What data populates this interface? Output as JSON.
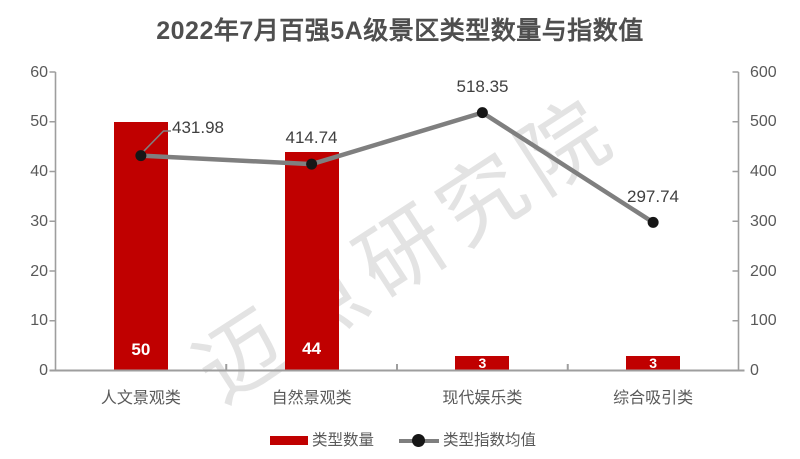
{
  "title": "2022年7月百强5A级景区类型数量与指数值",
  "watermark": "迈点研究院",
  "colors": {
    "bar": "#c00000",
    "line": "#7f7f7f",
    "marker": "#161616",
    "axis": "#9e9e9e",
    "title_text": "#4f4f4f",
    "tick_text": "#595959",
    "data_label_text": "#3f3f3f",
    "bar_label_text": "#ffffff",
    "watermark_text": "#e3e3e3",
    "background": "#ffffff"
  },
  "chart_data": {
    "type": "bar",
    "combo": "bar + line, dual axis",
    "title": "2022年7月百强5A级景区类型数量与指数值",
    "categories": [
      "人文景观类",
      "自然景观类",
      "现代娱乐类",
      "综合吸引类"
    ],
    "series": [
      {
        "name": "类型数量",
        "type": "bar",
        "axis": "left",
        "values": [
          50,
          44,
          3,
          3
        ]
      },
      {
        "name": "类型指数均值",
        "type": "line",
        "axis": "right",
        "values": [
          431.98,
          414.74,
          518.35,
          297.74
        ]
      }
    ],
    "left_axis": {
      "min": 0,
      "max": 60,
      "ticks": [
        0,
        10,
        20,
        30,
        40,
        50,
        60
      ]
    },
    "right_axis": {
      "min": 0,
      "max": 600,
      "ticks": [
        0,
        100,
        200,
        300,
        400,
        500,
        600
      ]
    },
    "grid": false,
    "legend_position": "bottom",
    "data_labels_shown": true
  }
}
